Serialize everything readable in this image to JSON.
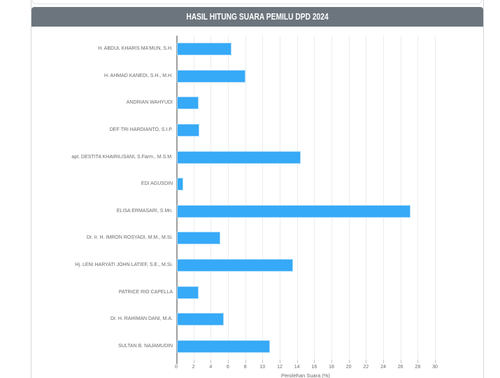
{
  "header": {
    "title": "HASIL HITUNG SUARA PEMILU DPD 2024"
  },
  "colors": {
    "header_bg": "#6c757d",
    "header_text": "#ffffff",
    "bar_fill": "#36a9f7",
    "bar_border": "#a3d8f9",
    "gridline": "#ececec",
    "axis_line": "#9e9e9e",
    "label_text": "#66696c"
  },
  "chart_data": {
    "type": "bar",
    "orientation": "horizontal",
    "title": "HASIL HITUNG SUARA PEMILU DPD 2024",
    "categories": [
      "H. ABDUL KHARIS MA'MUN, S.H.",
      "H. AHMAD KANEDI, S.H., M.H.",
      "ANDRIAN WAHYUDI",
      "DEF TRI HARDIANTO, S.I.P.",
      "apt. DESTITA KHAIRILISANI, S.Farm., M.S.M.",
      "EDI AGUSDIN",
      "ELISA ERMASARI, S.Mn.",
      "Dr. Ir. H. IMRON ROSYADI, M.M., M.Si.",
      "Hj. LENI HARYATI JOHN LATIEF, S.E., M.Si.",
      "PATRICE RIO CAPELLA",
      "Dr. H. RAHIMAN DANI, M.A.",
      "SULTAN B. NAJAMUDIN"
    ],
    "values": [
      6.4,
      8.0,
      2.6,
      2.7,
      14.4,
      0.8,
      27.2,
      5.1,
      13.5,
      2.6,
      5.5,
      10.9
    ],
    "xlabel": "Perolehan Suara (%)",
    "ylabel": "",
    "xlim": [
      0,
      30
    ],
    "xticks": [
      0,
      2,
      4,
      6,
      8,
      10,
      12,
      14,
      16,
      18,
      20,
      22,
      24,
      26,
      28,
      30
    ],
    "grid": true,
    "legend": false
  }
}
